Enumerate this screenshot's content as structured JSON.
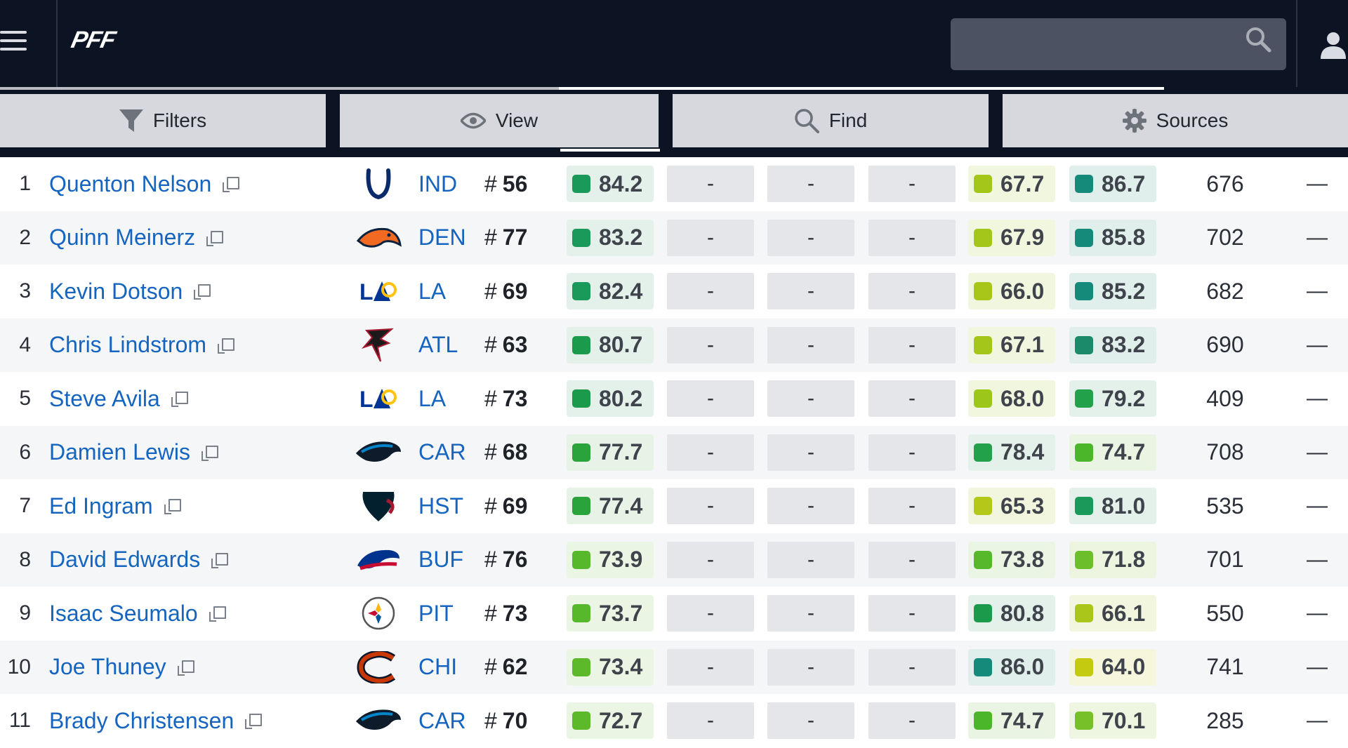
{
  "header": {
    "logo": "PFF",
    "search_placeholder": ""
  },
  "toolbar": {
    "filters_label": "Filters",
    "view_label": "View",
    "find_label": "Find",
    "sources_label": "Sources"
  },
  "rows": [
    {
      "rank": "1",
      "name": "Quenton Nelson",
      "team": "IND",
      "num_prefix": "#",
      "number": "56",
      "g1": "84.2",
      "g2": "67.7",
      "g3": "86.7",
      "snaps": "676",
      "dash": "-",
      "end": "—",
      "logo": "colts-horseshoe-icon",
      "c1": "#1a9a5a",
      "c2": "#a4c61a",
      "c3": "#168a7a",
      "bg1": "#e3f1ea",
      "bg2": "#f1f6df",
      "bg3": "#e0efec"
    },
    {
      "rank": "2",
      "name": "Quinn Meinerz",
      "team": "DEN",
      "num_prefix": "#",
      "number": "77",
      "g1": "83.2",
      "g2": "67.9",
      "g3": "85.8",
      "snaps": "702",
      "dash": "-",
      "end": "—",
      "logo": "broncos-horse-icon",
      "c1": "#1a9a5a",
      "c2": "#a4c61a",
      "c3": "#168a7a",
      "bg1": "#e3f1ea",
      "bg2": "#f1f6df",
      "bg3": "#e0efec"
    },
    {
      "rank": "3",
      "name": "Kevin Dotson",
      "team": "LA",
      "num_prefix": "#",
      "number": "69",
      "g1": "82.4",
      "g2": "66.0",
      "g3": "85.2",
      "snaps": "682",
      "dash": "-",
      "end": "—",
      "logo": "rams-la-icon",
      "c1": "#1a9a5a",
      "c2": "#a8c61a",
      "c3": "#168a7a",
      "bg1": "#e3f1ea",
      "bg2": "#f1f6df",
      "bg3": "#e0efec"
    },
    {
      "rank": "4",
      "name": "Chris Lindstrom",
      "team": "ATL",
      "num_prefix": "#",
      "number": "63",
      "g1": "80.7",
      "g2": "67.1",
      "g3": "83.2",
      "snaps": "690",
      "dash": "-",
      "end": "—",
      "logo": "falcons-icon",
      "c1": "#1a9a4a",
      "c2": "#a4c61a",
      "c3": "#1a8a6a",
      "bg1": "#e3f1ea",
      "bg2": "#f1f6df",
      "bg3": "#e0efec"
    },
    {
      "rank": "5",
      "name": "Steve Avila",
      "team": "LA",
      "num_prefix": "#",
      "number": "73",
      "g1": "80.2",
      "g2": "68.0",
      "g3": "79.2",
      "snaps": "409",
      "dash": "-",
      "end": "—",
      "logo": "rams-la-icon",
      "c1": "#1a9a4a",
      "c2": "#9cc61a",
      "c3": "#23a04a",
      "bg1": "#e3f1ea",
      "bg2": "#f1f6df",
      "bg3": "#e3f1ea"
    },
    {
      "rank": "6",
      "name": "Damien Lewis",
      "team": "CAR",
      "num_prefix": "#",
      "number": "68",
      "g1": "77.7",
      "g2": "78.4",
      "g3": "74.7",
      "snaps": "708",
      "dash": "-",
      "end": "—",
      "logo": "panthers-icon",
      "c1": "#2aa43a",
      "c2": "#23a04a",
      "c3": "#4cb62a",
      "bg1": "#e6f3e6",
      "bg2": "#e3f1ea",
      "bg3": "#e9f4e2"
    },
    {
      "rank": "7",
      "name": "Ed Ingram",
      "team": "HST",
      "num_prefix": "#",
      "number": "69",
      "g1": "77.4",
      "g2": "65.3",
      "g3": "81.0",
      "snaps": "535",
      "dash": "-",
      "end": "—",
      "logo": "texans-icon",
      "c1": "#2aa43a",
      "c2": "#b4c81a",
      "c3": "#1a9a5a",
      "bg1": "#e6f3e6",
      "bg2": "#f3f6df",
      "bg3": "#e3f1ea"
    },
    {
      "rank": "8",
      "name": "David Edwards",
      "team": "BUF",
      "num_prefix": "#",
      "number": "76",
      "g1": "73.9",
      "g2": "73.8",
      "g3": "71.8",
      "snaps": "701",
      "dash": "-",
      "end": "—",
      "logo": "bills-icon",
      "c1": "#56b82a",
      "c2": "#56b82a",
      "c3": "#6cbe2a",
      "bg1": "#ebf5e3",
      "bg2": "#ebf5e3",
      "bg3": "#edf5e1"
    },
    {
      "rank": "9",
      "name": "Isaac Seumalo",
      "team": "PIT",
      "num_prefix": "#",
      "number": "73",
      "g1": "73.7",
      "g2": "80.8",
      "g3": "66.1",
      "snaps": "550",
      "dash": "-",
      "end": "—",
      "logo": "steelers-icon",
      "c1": "#56b82a",
      "c2": "#1a9a4a",
      "c3": "#aac61a",
      "bg1": "#ebf5e3",
      "bg2": "#e3f1ea",
      "bg3": "#f2f6df"
    },
    {
      "rank": "10",
      "name": "Joe Thuney",
      "team": "CHI",
      "num_prefix": "#",
      "number": "62",
      "g1": "73.4",
      "g2": "86.0",
      "g3": "64.0",
      "snaps": "741",
      "dash": "-",
      "end": "—",
      "logo": "bears-c-icon",
      "c1": "#5cba2a",
      "c2": "#168a7a",
      "c3": "#c4ca10",
      "bg1": "#ebf5e3",
      "bg2": "#e0efec",
      "bg3": "#f5f6dc"
    },
    {
      "rank": "11",
      "name": "Brady Christensen",
      "team": "CAR",
      "num_prefix": "#",
      "number": "70",
      "g1": "72.7",
      "g2": "74.7",
      "g3": "70.1",
      "snaps": "285",
      "dash": "-",
      "end": "—",
      "logo": "panthers-icon",
      "c1": "#5cba2a",
      "c2": "#4cb62a",
      "c3": "#78c02a",
      "bg1": "#ebf5e3",
      "bg2": "#e9f4e2",
      "bg3": "#eef5e1"
    }
  ]
}
